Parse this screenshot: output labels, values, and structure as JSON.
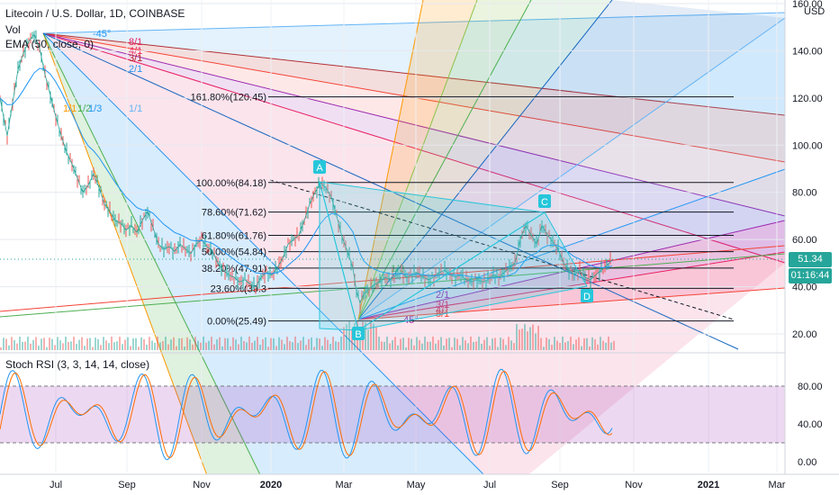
{
  "header": {
    "symbol_title": "Litecoin / U.S. Dollar, 1D, COINBASE",
    "vol_label": "Vol",
    "ema_label": "EMA (50, close, 0)",
    "stoch_label": "Stoch RSI (3, 3, 14, 14, close)"
  },
  "price_axis": {
    "currency": "USD",
    "ticks": [
      "160.00",
      "140.00",
      "120.00",
      "100.00",
      "80.00",
      "60.00",
      "40.00",
      "20.00"
    ],
    "last_price": "51.34",
    "countdown": "01:16:44",
    "last_price_color": "#26a69a"
  },
  "stoch_axis": {
    "ticks": [
      "80.00",
      "40.00",
      "0.00"
    ]
  },
  "time_axis": {
    "labels": [
      "Jul",
      "Sep",
      "Nov",
      "2020",
      "Mar",
      "May",
      "Jul",
      "Sep",
      "Nov",
      "2021",
      "Mar"
    ]
  },
  "fibonacci": {
    "levels": [
      {
        "label": "161.80%(120.45)"
      },
      {
        "label": "100.00%(84.18)"
      },
      {
        "label": "78.60%(71.62)"
      },
      {
        "label": "61.80%(61.76)"
      },
      {
        "label": "50.00%(54.84)"
      },
      {
        "label": "38.20%(47.91)"
      },
      {
        "label": "23.60%(39.3"
      },
      {
        "label": "0.00%(25.49)"
      }
    ]
  },
  "pattern_points": {
    "A": "A",
    "B": "B",
    "C": "C",
    "D": "D"
  },
  "gann_fan_top": {
    "labels": [
      "-45°",
      "8/1",
      "4/1",
      "3/1",
      "2/1",
      "1/1",
      "1/1",
      "1/2",
      "1/3"
    ]
  },
  "gann_fan_bottom": {
    "labels": [
      "2/1",
      "3/1",
      "4/1",
      "8/1",
      "45°",
      "1/3"
    ]
  },
  "chart_data": {
    "type": "line",
    "title": "Litecoin / U.S. Dollar, 1D, COINBASE",
    "y_range": [
      12,
      165
    ],
    "x_labels": [
      "Jul",
      "Sep",
      "Nov",
      "2020",
      "Mar",
      "May",
      "Jul",
      "Sep",
      "Nov",
      "2021",
      "Mar"
    ],
    "price_series": {
      "name": "LTCUSD",
      "points": [
        [
          0,
          120
        ],
        [
          8,
          104
        ],
        [
          14,
          118
        ],
        [
          20,
          132
        ],
        [
          26,
          139
        ],
        [
          32,
          144
        ],
        [
          38,
          147
        ],
        [
          44,
          141
        ],
        [
          50,
          130
        ],
        [
          56,
          121
        ],
        [
          62,
          112
        ],
        [
          68,
          104
        ],
        [
          74,
          97
        ],
        [
          80,
          92
        ],
        [
          86,
          86
        ],
        [
          92,
          80
        ],
        [
          98,
          83
        ],
        [
          104,
          88
        ],
        [
          110,
          82
        ],
        [
          116,
          75
        ],
        [
          122,
          72
        ],
        [
          128,
          68
        ],
        [
          134,
          67
        ],
        [
          140,
          64
        ],
        [
          146,
          66
        ],
        [
          152,
          63
        ],
        [
          158,
          68
        ],
        [
          164,
          72
        ],
        [
          170,
          65
        ],
        [
          176,
          58
        ],
        [
          182,
          56
        ],
        [
          188,
          57
        ],
        [
          194,
          55
        ],
        [
          200,
          58
        ],
        [
          206,
          56
        ],
        [
          212,
          54
        ],
        [
          218,
          58
        ],
        [
          224,
          60
        ],
        [
          230,
          57
        ],
        [
          236,
          55
        ],
        [
          242,
          50
        ],
        [
          248,
          47
        ],
        [
          254,
          45
        ],
        [
          260,
          44
        ],
        [
          266,
          42
        ],
        [
          272,
          43
        ],
        [
          278,
          41
        ],
        [
          284,
          40
        ],
        [
          290,
          44
        ],
        [
          296,
          46
        ],
        [
          302,
          45
        ],
        [
          308,
          48
        ],
        [
          314,
          52
        ],
        [
          320,
          58
        ],
        [
          326,
          60
        ],
        [
          332,
          62
        ],
        [
          338,
          68
        ],
        [
          344,
          75
        ],
        [
          350,
          80
        ],
        [
          356,
          84
        ],
        [
          362,
          82
        ],
        [
          368,
          78
        ],
        [
          374,
          70
        ],
        [
          380,
          61
        ],
        [
          386,
          55
        ],
        [
          392,
          48
        ],
        [
          396,
          38
        ],
        [
          400,
          33
        ],
        [
          404,
          37
        ],
        [
          410,
          39
        ],
        [
          416,
          41
        ],
        [
          422,
          42
        ],
        [
          428,
          44
        ],
        [
          434,
          43
        ],
        [
          440,
          45
        ],
        [
          446,
          46
        ],
        [
          452,
          44
        ],
        [
          458,
          45
        ],
        [
          464,
          46
        ],
        [
          470,
          44
        ],
        [
          476,
          43
        ],
        [
          482,
          44
        ],
        [
          488,
          46
        ],
        [
          494,
          47
        ],
        [
          500,
          45
        ],
        [
          506,
          44
        ],
        [
          512,
          45
        ],
        [
          518,
          43
        ],
        [
          524,
          42
        ],
        [
          530,
          43
        ],
        [
          536,
          42
        ],
        [
          542,
          43
        ],
        [
          548,
          45
        ],
        [
          554,
          44
        ],
        [
          560,
          46
        ],
        [
          566,
          48
        ],
        [
          572,
          50
        ],
        [
          578,
          60
        ],
        [
          584,
          66
        ],
        [
          590,
          62
        ],
        [
          596,
          58
        ],
        [
          602,
          66
        ],
        [
          608,
          62
        ],
        [
          614,
          59
        ],
        [
          620,
          56
        ],
        [
          626,
          50
        ],
        [
          632,
          47
        ],
        [
          638,
          45
        ],
        [
          644,
          47
        ],
        [
          650,
          44
        ],
        [
          656,
          43
        ],
        [
          662,
          45
        ],
        [
          668,
          47
        ],
        [
          674,
          49
        ],
        [
          680,
          51.34
        ]
      ]
    },
    "ema_series": {
      "name": "EMA (50, close, 0)"
    },
    "fib_levels": [
      {
        "ratio": 1.618,
        "price": 120.45
      },
      {
        "ratio": 1.0,
        "price": 84.18
      },
      {
        "ratio": 0.786,
        "price": 71.62
      },
      {
        "ratio": 0.618,
        "price": 61.76
      },
      {
        "ratio": 0.5,
        "price": 54.84
      },
      {
        "ratio": 0.382,
        "price": 47.91
      },
      {
        "ratio": 0.236,
        "price": 39.3
      },
      {
        "ratio": 0.0,
        "price": 25.49
      }
    ],
    "stoch_rsi": {
      "range": [
        0,
        100
      ],
      "bands": [
        20,
        80
      ]
    }
  }
}
